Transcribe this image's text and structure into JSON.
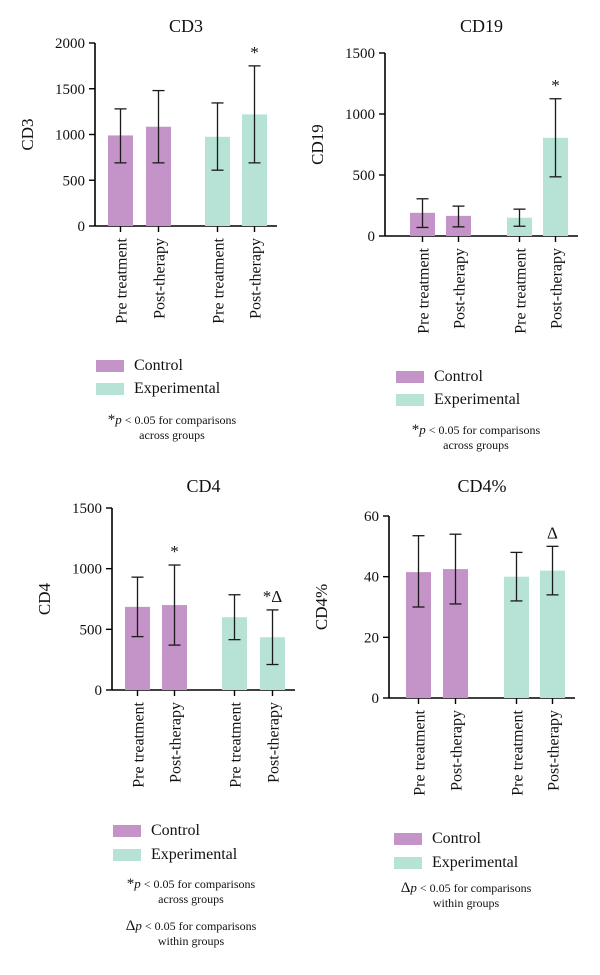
{
  "colors": {
    "control": "#c493c7",
    "experimental": "#b7e3d6",
    "axis": "#000000",
    "error": "#1a1a1a"
  },
  "legend": {
    "control": "Control",
    "experimental": "Experimental"
  },
  "notes": {
    "star_sym": "*",
    "star_p": "p",
    "star_line1": " < 0.05 for comparisons",
    "star_line2": "across groups",
    "delta_sym": "Δ",
    "delta_p": "p",
    "delta_line1": " < 0.05 for comparisons",
    "delta_line2": "within groups"
  },
  "chart_data": [
    {
      "type": "bar",
      "title": "CD3",
      "ylabel": "CD3",
      "ylim": [
        0,
        2000
      ],
      "yticks": [
        0,
        500,
        1000,
        1500,
        2000
      ],
      "categories": [
        "Pre treatment",
        "Post-therapy",
        "Pre treatment",
        "Post-therapy"
      ],
      "groups": [
        "Control",
        "Control",
        "Experimental",
        "Experimental"
      ],
      "values": [
        990,
        1085,
        975,
        1220
      ],
      "err_low": [
        690,
        690,
        610,
        690
      ],
      "err_high": [
        1280,
        1480,
        1345,
        1750
      ],
      "annotations": [
        "",
        "",
        "",
        "*"
      ]
    },
    {
      "type": "bar",
      "title": "CD19",
      "ylabel": "CD19",
      "ylim": [
        0,
        1500
      ],
      "yticks": [
        0,
        500,
        1000,
        1500
      ],
      "categories": [
        "Pre treatment",
        "Post-therapy",
        "Pre treatment",
        "Post-therapy"
      ],
      "groups": [
        "Control",
        "Control",
        "Experimental",
        "Experimental"
      ],
      "values": [
        190,
        165,
        150,
        805
      ],
      "err_low": [
        70,
        75,
        80,
        485
      ],
      "err_high": [
        305,
        245,
        220,
        1125
      ],
      "annotations": [
        "",
        "",
        "",
        "*"
      ]
    },
    {
      "type": "bar",
      "title": "CD4",
      "ylabel": "CD4",
      "ylim": [
        0,
        1500
      ],
      "yticks": [
        0,
        500,
        1000,
        1500
      ],
      "categories": [
        "Pre treatment",
        "Post-therapy",
        "Pre treatment",
        "Post-therapy"
      ],
      "groups": [
        "Control",
        "Control",
        "Experimental",
        "Experimental"
      ],
      "values": [
        685,
        700,
        600,
        435
      ],
      "err_low": [
        440,
        370,
        415,
        210
      ],
      "err_high": [
        930,
        1030,
        785,
        660
      ],
      "annotations": [
        "",
        "*",
        "",
        "*Δ"
      ]
    },
    {
      "type": "bar",
      "title": "CD4%",
      "ylabel": "CD4%",
      "ylim": [
        0,
        60
      ],
      "yticks": [
        0,
        20,
        40,
        60
      ],
      "categories": [
        "Pre treatment",
        "Post-therapy",
        "Pre treatment",
        "Post-therapy"
      ],
      "groups": [
        "Control",
        "Control",
        "Experimental",
        "Experimental"
      ],
      "values": [
        41.5,
        42.5,
        40,
        42
      ],
      "err_low": [
        30,
        31,
        32,
        34
      ],
      "err_high": [
        53.5,
        54,
        48,
        50
      ],
      "annotations": [
        "",
        "",
        "",
        "Δ"
      ]
    }
  ]
}
